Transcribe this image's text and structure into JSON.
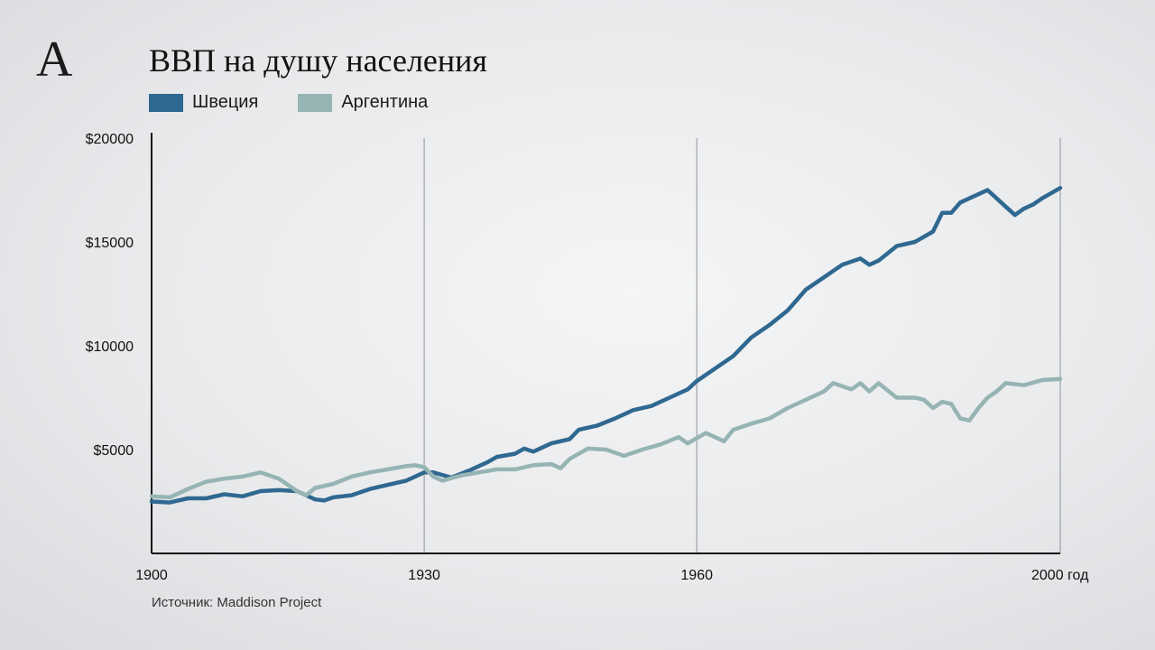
{
  "logo": {
    "text": "А"
  },
  "source": "Источник: Maddison Project",
  "chart_data": {
    "type": "line",
    "title": "ВВП на душу населения",
    "xlabel": "",
    "ylabel": "",
    "xlim": [
      1900,
      2000
    ],
    "ylim": [
      0,
      20000
    ],
    "x_ticks": [
      {
        "value": 1900,
        "label": "1900"
      },
      {
        "value": 1930,
        "label": "1930"
      },
      {
        "value": 1960,
        "label": "1960"
      },
      {
        "value": 2000,
        "label": "2000 год"
      }
    ],
    "y_ticks": [
      {
        "value": 5000,
        "label": "$5000"
      },
      {
        "value": 10000,
        "label": "$10000"
      },
      {
        "value": 15000,
        "label": "$15000"
      },
      {
        "value": 20000,
        "label": "$20000"
      }
    ],
    "vertical_gridlines": [
      1930,
      1960,
      2000
    ],
    "legend_position": "top-left",
    "series": [
      {
        "name": "Швеция",
        "color": "#2f6890",
        "points": [
          [
            1900,
            2500
          ],
          [
            1902,
            2450
          ],
          [
            1904,
            2650
          ],
          [
            1906,
            2650
          ],
          [
            1908,
            2850
          ],
          [
            1910,
            2750
          ],
          [
            1912,
            3000
          ],
          [
            1914,
            3050
          ],
          [
            1916,
            3000
          ],
          [
            1918,
            2600
          ],
          [
            1919,
            2550
          ],
          [
            1920,
            2700
          ],
          [
            1922,
            2800
          ],
          [
            1924,
            3100
          ],
          [
            1926,
            3300
          ],
          [
            1928,
            3500
          ],
          [
            1930,
            3900
          ],
          [
            1931,
            3900
          ],
          [
            1933,
            3650
          ],
          [
            1935,
            4000
          ],
          [
            1937,
            4400
          ],
          [
            1938,
            4650
          ],
          [
            1940,
            4800
          ],
          [
            1941,
            5050
          ],
          [
            1942,
            4900
          ],
          [
            1944,
            5300
          ],
          [
            1946,
            5500
          ],
          [
            1947,
            5950
          ],
          [
            1949,
            6150
          ],
          [
            1951,
            6500
          ],
          [
            1953,
            6900
          ],
          [
            1955,
            7100
          ],
          [
            1957,
            7500
          ],
          [
            1959,
            7900
          ],
          [
            1960,
            8300
          ],
          [
            1962,
            8900
          ],
          [
            1964,
            9500
          ],
          [
            1966,
            10400
          ],
          [
            1968,
            11000
          ],
          [
            1970,
            11700
          ],
          [
            1971,
            12200
          ],
          [
            1972,
            12700
          ],
          [
            1974,
            13300
          ],
          [
            1976,
            13900
          ],
          [
            1978,
            14200
          ],
          [
            1979,
            13900
          ],
          [
            1980,
            14100
          ],
          [
            1982,
            14800
          ],
          [
            1984,
            15000
          ],
          [
            1986,
            15500
          ],
          [
            1987,
            16400
          ],
          [
            1988,
            16400
          ],
          [
            1989,
            16900
          ],
          [
            1991,
            17300
          ],
          [
            1992,
            17500
          ],
          [
            1993,
            17100
          ],
          [
            1994,
            16700
          ],
          [
            1995,
            16300
          ],
          [
            1996,
            16600
          ],
          [
            1997,
            16800
          ],
          [
            1998,
            17100
          ],
          [
            2000,
            17600
          ]
        ]
      },
      {
        "name": "Аргентина",
        "color": "#96b4b4",
        "points": [
          [
            1900,
            2750
          ],
          [
            1902,
            2700
          ],
          [
            1904,
            3100
          ],
          [
            1906,
            3450
          ],
          [
            1908,
            3600
          ],
          [
            1910,
            3700
          ],
          [
            1912,
            3900
          ],
          [
            1914,
            3600
          ],
          [
            1916,
            3000
          ],
          [
            1917,
            2800
          ],
          [
            1918,
            3150
          ],
          [
            1920,
            3350
          ],
          [
            1922,
            3700
          ],
          [
            1924,
            3900
          ],
          [
            1926,
            4050
          ],
          [
            1928,
            4200
          ],
          [
            1929,
            4250
          ],
          [
            1930,
            4150
          ],
          [
            1931,
            3700
          ],
          [
            1932,
            3500
          ],
          [
            1934,
            3750
          ],
          [
            1936,
            3900
          ],
          [
            1938,
            4050
          ],
          [
            1940,
            4050
          ],
          [
            1942,
            4250
          ],
          [
            1944,
            4300
          ],
          [
            1945,
            4100
          ],
          [
            1946,
            4550
          ],
          [
            1948,
            5050
          ],
          [
            1950,
            5000
          ],
          [
            1952,
            4700
          ],
          [
            1954,
            5000
          ],
          [
            1956,
            5250
          ],
          [
            1958,
            5600
          ],
          [
            1959,
            5300
          ],
          [
            1961,
            5800
          ],
          [
            1963,
            5400
          ],
          [
            1964,
            5950
          ],
          [
            1966,
            6250
          ],
          [
            1968,
            6500
          ],
          [
            1970,
            7000
          ],
          [
            1972,
            7400
          ],
          [
            1974,
            7800
          ],
          [
            1975,
            8200
          ],
          [
            1977,
            7900
          ],
          [
            1978,
            8200
          ],
          [
            1979,
            7800
          ],
          [
            1980,
            8200
          ],
          [
            1982,
            7500
          ],
          [
            1984,
            7500
          ],
          [
            1985,
            7400
          ],
          [
            1986,
            7000
          ],
          [
            1987,
            7300
          ],
          [
            1988,
            7200
          ],
          [
            1989,
            6500
          ],
          [
            1990,
            6400
          ],
          [
            1991,
            7000
          ],
          [
            1992,
            7500
          ],
          [
            1993,
            7800
          ],
          [
            1994,
            8200
          ],
          [
            1996,
            8100
          ],
          [
            1998,
            8350
          ],
          [
            2000,
            8400
          ]
        ]
      }
    ]
  }
}
